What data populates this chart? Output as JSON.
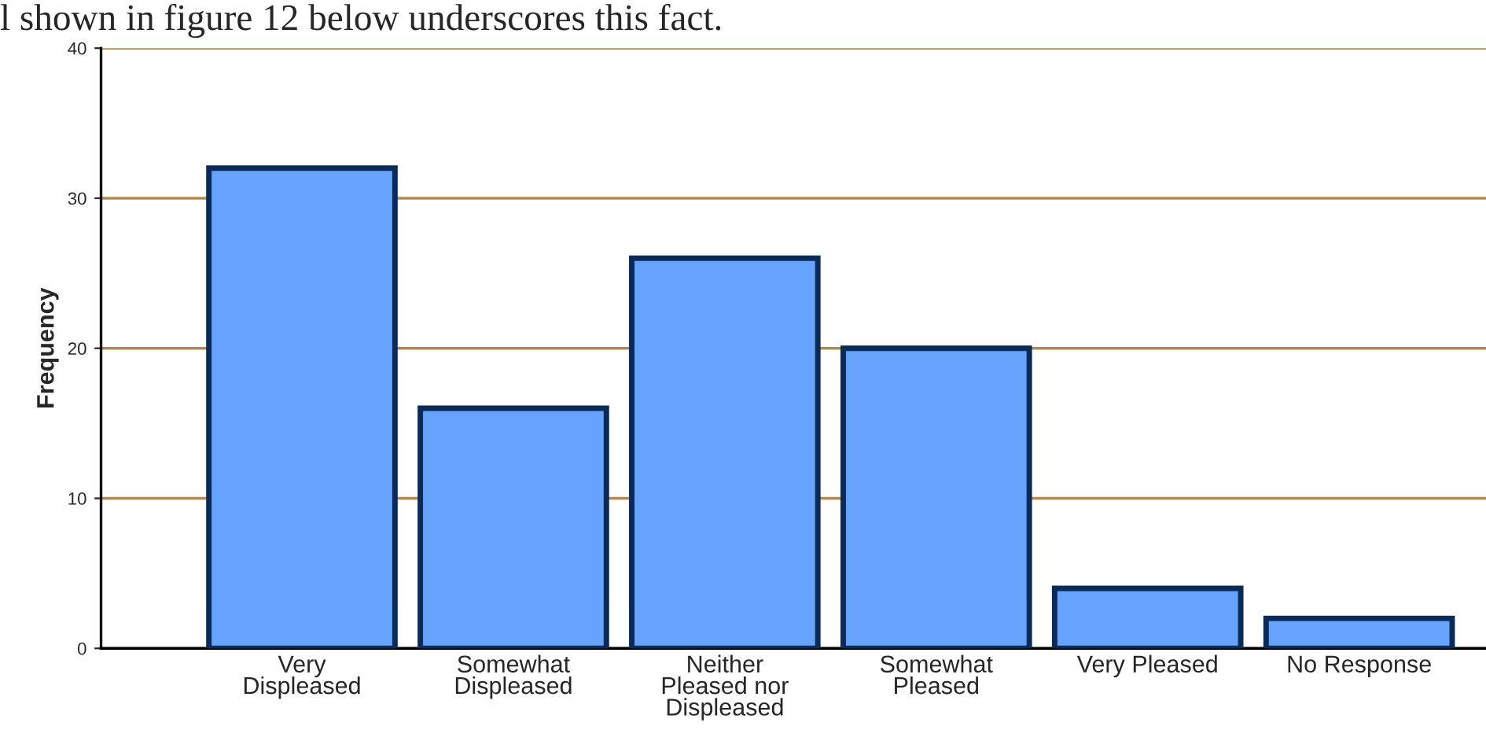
{
  "chart_data": {
    "type": "bar",
    "ylabel": "Frequency",
    "annotations": [
      "l shown in figure 12 below underscores this fact."
    ],
    "categories": [
      "Very\nDispleased",
      "Somewhat\nDispleased",
      "Neither\nPleased nor\nDispleased",
      "Somewhat\nPleased",
      "Very Pleased",
      "No Response"
    ],
    "values": [
      32,
      16,
      26,
      20,
      4,
      2
    ],
    "color": "#66a3fd",
    "ylim": [
      0,
      40
    ],
    "yticks": [
      0,
      10,
      20,
      30,
      40
    ],
    "grid": "y"
  }
}
